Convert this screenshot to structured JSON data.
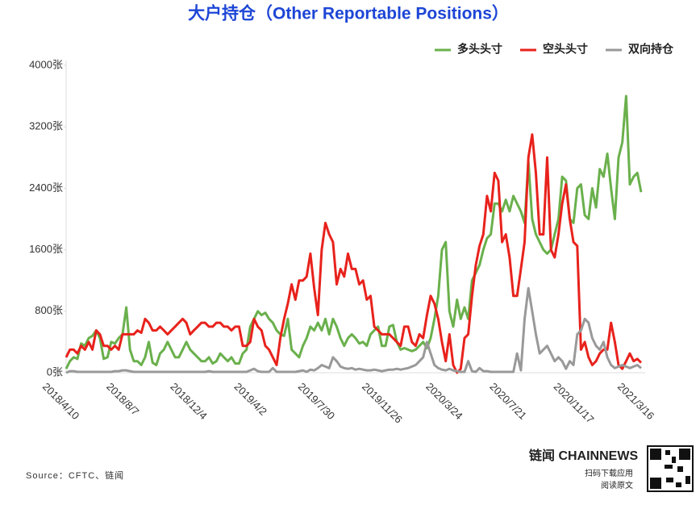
{
  "chart_data": {
    "type": "line",
    "title": "大户持仓（Other Reportable Positions）",
    "source": "Source：CFTC、链闻",
    "brand": {
      "name": "链闻 CHAINNEWS",
      "line1": "扫码下载应用",
      "line2": "阅读原文"
    },
    "legend_position": "top-right",
    "grid": false,
    "categories": [
      "2018/4/10",
      null,
      null,
      null,
      null,
      null,
      null,
      null,
      null,
      null,
      null,
      null,
      null,
      null,
      null,
      null,
      null,
      "2018/8/7",
      null,
      null,
      null,
      null,
      null,
      null,
      null,
      null,
      null,
      null,
      null,
      null,
      null,
      null,
      null,
      null,
      "2018/12/4",
      null,
      null,
      null,
      null,
      null,
      null,
      null,
      null,
      null,
      null,
      null,
      null,
      null,
      null,
      null,
      null,
      "2019/4/2",
      null,
      null,
      null,
      null,
      null,
      null,
      null,
      null,
      null,
      null,
      null,
      null,
      null,
      null,
      null,
      null,
      "2019/7/30",
      null,
      null,
      null,
      null,
      null,
      null,
      null,
      null,
      null,
      null,
      null,
      null,
      null,
      null,
      null,
      null,
      "2019/11/26",
      null,
      null,
      null,
      null,
      null,
      null,
      null,
      null,
      null,
      null,
      null,
      null,
      null,
      null,
      null,
      null,
      "2020/3/24",
      null,
      null,
      null,
      null,
      null,
      null,
      null,
      null,
      null,
      null,
      null,
      null,
      null,
      null,
      null,
      null,
      "2020/7/21",
      null,
      null,
      null,
      null,
      null,
      null,
      null,
      null,
      null,
      null,
      null,
      null,
      null,
      null,
      null,
      null,
      "2020/11/17",
      null,
      null,
      null,
      null,
      null,
      null,
      null,
      null,
      null,
      null,
      null,
      null,
      null,
      null,
      null,
      null,
      "2021/3/16"
    ],
    "ylim": [
      0,
      4000
    ],
    "yticks": [
      {
        "value": 0,
        "label": "0张"
      },
      {
        "value": 800,
        "label": "800张"
      },
      {
        "value": 1600,
        "label": "1600张"
      },
      {
        "value": 2400,
        "label": "2400张"
      },
      {
        "value": 3200,
        "label": "3200张"
      },
      {
        "value": 4000,
        "label": "4000张"
      }
    ],
    "series": [
      {
        "name": "多头头寸",
        "color": "#6ab04c",
        "values": [
          50,
          150,
          200,
          180,
          380,
          350,
          450,
          480,
          550,
          450,
          180,
          200,
          400,
          380,
          450,
          500,
          850,
          300,
          150,
          150,
          100,
          200,
          400,
          130,
          100,
          250,
          300,
          400,
          300,
          200,
          200,
          300,
          400,
          300,
          250,
          200,
          150,
          150,
          200,
          120,
          150,
          250,
          200,
          150,
          200,
          120,
          120,
          250,
          300,
          600,
          700,
          800,
          750,
          780,
          700,
          650,
          550,
          500,
          480,
          700,
          300,
          250,
          200,
          350,
          450,
          600,
          550,
          650,
          550,
          700,
          500,
          700,
          600,
          450,
          350,
          450,
          500,
          450,
          380,
          400,
          350,
          500,
          550,
          600,
          350,
          350,
          600,
          620,
          400,
          300,
          320,
          300,
          280,
          300,
          350,
          400,
          320,
          450,
          700,
          1000,
          1600,
          1700,
          800,
          600,
          950,
          700,
          850,
          700,
          1200,
          1300,
          1400,
          1600,
          1750,
          1800,
          2200,
          2200,
          2100,
          2250,
          2100,
          2300,
          2200,
          2100,
          1950,
          2750,
          2000,
          1800,
          1700,
          1600,
          1550,
          1600,
          1800,
          2000,
          2550,
          2500,
          2000,
          1950,
          2400,
          2450,
          2050,
          2000,
          2400,
          2150,
          2650,
          2550,
          2850,
          2400,
          2000,
          2800,
          3000,
          3600,
          2450,
          2550,
          2600,
          2350
        ]
      },
      {
        "name": "空头头寸",
        "color": "#e8221c",
        "values": [
          200,
          300,
          300,
          250,
          350,
          300,
          400,
          300,
          550,
          500,
          350,
          350,
          300,
          350,
          300,
          500,
          500,
          500,
          500,
          550,
          520,
          700,
          650,
          550,
          550,
          600,
          550,
          500,
          550,
          600,
          650,
          700,
          650,
          500,
          550,
          600,
          650,
          650,
          600,
          600,
          650,
          650,
          600,
          600,
          550,
          600,
          600,
          350,
          350,
          400,
          700,
          600,
          550,
          350,
          300,
          200,
          100,
          450,
          700,
          900,
          1150,
          950,
          1200,
          1200,
          1250,
          1550,
          1100,
          750,
          1600,
          1950,
          1800,
          1700,
          1150,
          1350,
          1250,
          1550,
          1350,
          1350,
          1150,
          1200,
          950,
          1000,
          600,
          550,
          500,
          500,
          500,
          450,
          400,
          350,
          600,
          600,
          400,
          350,
          500,
          450,
          750,
          1000,
          900,
          700,
          400,
          150,
          500,
          100,
          0,
          50,
          450,
          500,
          1000,
          1400,
          1650,
          1800,
          2300,
          2100,
          2600,
          2500,
          1700,
          1800,
          1500,
          1000,
          1000,
          1350,
          1700,
          2800,
          3100,
          2600,
          1800,
          1800,
          2800,
          1600,
          1500,
          1800,
          2200,
          2450,
          2000,
          1700,
          1650,
          300,
          400,
          200,
          100,
          150,
          250,
          300,
          300,
          650,
          400,
          100,
          50,
          150,
          250,
          150,
          180,
          130
        ]
      },
      {
        "name": "双向持仓",
        "color": "#999999",
        "values": [
          0,
          20,
          20,
          10,
          10,
          10,
          10,
          10,
          10,
          10,
          10,
          10,
          10,
          20,
          20,
          30,
          30,
          20,
          10,
          10,
          10,
          10,
          10,
          10,
          10,
          10,
          10,
          10,
          10,
          10,
          10,
          10,
          10,
          10,
          10,
          10,
          10,
          10,
          20,
          10,
          10,
          10,
          10,
          10,
          10,
          10,
          10,
          10,
          10,
          30,
          50,
          20,
          10,
          10,
          10,
          60,
          10,
          10,
          10,
          10,
          10,
          10,
          20,
          30,
          10,
          40,
          30,
          60,
          100,
          80,
          60,
          200,
          150,
          80,
          60,
          50,
          60,
          40,
          50,
          40,
          30,
          30,
          40,
          30,
          20,
          30,
          40,
          40,
          50,
          40,
          50,
          60,
          80,
          100,
          150,
          200,
          400,
          250,
          100,
          60,
          40,
          30,
          50,
          30,
          20,
          10,
          10,
          150,
          20,
          10,
          60,
          20,
          20,
          10,
          10,
          10,
          10,
          10,
          10,
          10,
          250,
          30,
          700,
          1100,
          800,
          500,
          250,
          300,
          350,
          250,
          150,
          200,
          150,
          50,
          150,
          100,
          500,
          550,
          700,
          650,
          450,
          350,
          300,
          400,
          200,
          100,
          60,
          80,
          100,
          80,
          60,
          80,
          100,
          60
        ]
      }
    ]
  }
}
